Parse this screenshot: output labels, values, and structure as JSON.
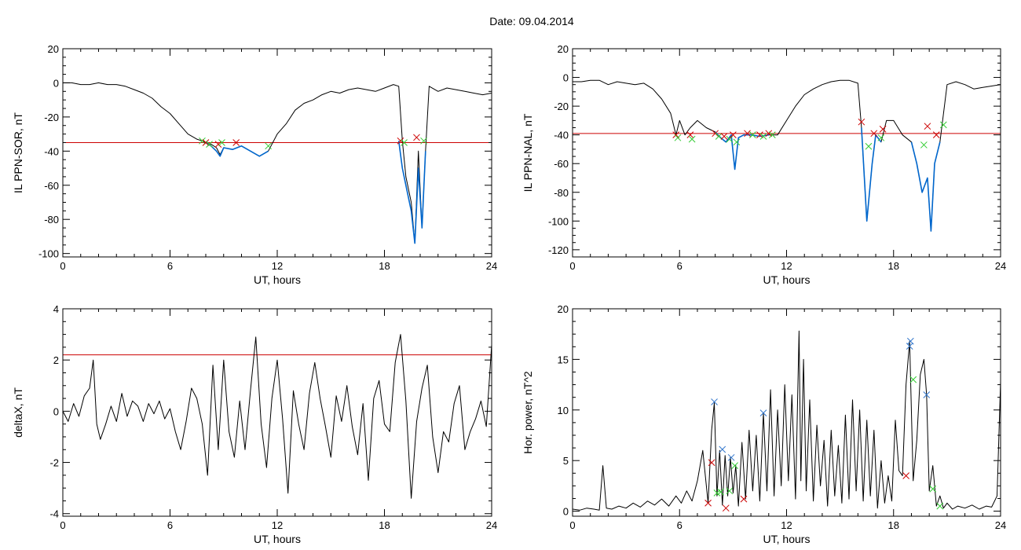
{
  "header": {
    "title": "Date:  09.04.2014"
  },
  "colors": {
    "trace": "#000000",
    "threshold": "#cc0000",
    "segment": "#0066cc",
    "marker_start": "#33cc33",
    "marker_end": "#cc0000",
    "marker_peak": "#3377cc"
  },
  "chart_data": [
    {
      "id": "ppn-sor",
      "type": "line",
      "title": "",
      "xlabel": "UT, hours",
      "ylabel": "IL PPN-SOR, nT",
      "xlim": [
        0,
        24
      ],
      "ylim": [
        -102,
        20
      ],
      "xticks": [
        0,
        6,
        12,
        18,
        24
      ],
      "yticks": [
        20,
        0,
        -20,
        -40,
        -60,
        -80,
        -100
      ],
      "threshold": -35,
      "series": [
        {
          "role": "trace",
          "x": [
            0,
            0.5,
            1,
            1.5,
            2,
            2.5,
            3,
            3.5,
            4,
            4.5,
            5,
            5.5,
            6,
            6.5,
            7,
            7.5,
            7.8,
            8,
            8.3,
            8.6,
            8.8,
            9,
            9.5,
            10,
            10.5,
            11,
            11.5,
            12,
            12.5,
            13,
            13.5,
            14,
            14.5,
            15,
            15.5,
            16,
            16.5,
            17,
            17.5,
            18,
            18.5,
            18.8,
            19,
            19.2,
            19.5,
            19.7,
            19.9,
            20.1,
            20.3,
            20.5,
            21,
            21.5,
            22,
            22.5,
            23,
            23.5,
            24
          ],
          "y": [
            0,
            0,
            -1,
            -1,
            0,
            -1,
            -1,
            -2,
            -4,
            -6,
            -9,
            -14,
            -18,
            -24,
            -30,
            -33,
            -34,
            -35,
            -36,
            -38,
            -42,
            -38,
            -39,
            -37,
            -40,
            -43,
            -40,
            -30,
            -24,
            -16,
            -12,
            -10,
            -7,
            -5,
            -6,
            -4,
            -3,
            -4,
            -5,
            -3,
            -1,
            -2,
            -34,
            -55,
            -70,
            -94,
            -40,
            -85,
            -40,
            -2,
            -5,
            -3,
            -4,
            -5,
            -6,
            -7,
            -6
          ]
        },
        {
          "role": "segment",
          "x": [
            8,
            8.3,
            8.6,
            8.8,
            9,
            9.5,
            10,
            10.5,
            11,
            11.5
          ],
          "y": [
            -35,
            -37,
            -40,
            -43,
            -38,
            -39,
            -37,
            -40,
            -43,
            -40
          ]
        },
        {
          "role": "segment",
          "x": [
            18.8,
            19,
            19.2,
            19.5,
            19.7,
            19.9,
            20.1,
            20.3
          ],
          "y": [
            -34,
            -50,
            -60,
            -75,
            -94,
            -50,
            -85,
            -40
          ]
        }
      ],
      "markers": [
        {
          "x": 7.8,
          "y": -34,
          "kind": "start"
        },
        {
          "x": 8.0,
          "y": -35,
          "kind": "end"
        },
        {
          "x": 8.2,
          "y": -36,
          "kind": "start"
        },
        {
          "x": 8.7,
          "y": -36,
          "kind": "end"
        },
        {
          "x": 8.9,
          "y": -35,
          "kind": "start"
        },
        {
          "x": 9.7,
          "y": -35,
          "kind": "end"
        },
        {
          "x": 11.5,
          "y": -37,
          "kind": "start"
        },
        {
          "x": 18.9,
          "y": -34,
          "kind": "end"
        },
        {
          "x": 19.1,
          "y": -35,
          "kind": "start"
        },
        {
          "x": 19.8,
          "y": -32,
          "kind": "end"
        },
        {
          "x": 20.2,
          "y": -34,
          "kind": "start"
        }
      ]
    },
    {
      "id": "ppn-nal",
      "type": "line",
      "title": "",
      "xlabel": "UT, hours",
      "ylabel": "IL PPN-NAL, nT",
      "xlim": [
        0,
        24
      ],
      "ylim": [
        -125,
        20
      ],
      "xticks": [
        0,
        6,
        12,
        18,
        24
      ],
      "yticks": [
        20,
        0,
        -20,
        -40,
        -60,
        -80,
        -100,
        -120
      ],
      "threshold": -39,
      "series": [
        {
          "role": "trace",
          "x": [
            0,
            0.5,
            1,
            1.5,
            2,
            2.5,
            3,
            3.5,
            4,
            4.5,
            5,
            5.5,
            5.8,
            6,
            6.3,
            6.6,
            7,
            7.5,
            8,
            8.3,
            8.6,
            8.9,
            9.1,
            9.3,
            9.6,
            10,
            10.5,
            11,
            11.5,
            12,
            12.5,
            13,
            13.5,
            14,
            14.5,
            15,
            15.5,
            16,
            16.2,
            16.5,
            16.8,
            17,
            17.3,
            17.6,
            18,
            18.5,
            19,
            19.3,
            19.6,
            19.9,
            20.1,
            20.3,
            20.6,
            21,
            21.5,
            22,
            22.5,
            23,
            23.5,
            24
          ],
          "y": [
            -3,
            -3,
            -2,
            -2,
            -5,
            -3,
            -4,
            -5,
            -4,
            -8,
            -15,
            -25,
            -40,
            -30,
            -40,
            -35,
            -30,
            -35,
            -38,
            -42,
            -45,
            -40,
            -64,
            -42,
            -40,
            -40,
            -41,
            -40,
            -40,
            -30,
            -20,
            -12,
            -8,
            -5,
            -3,
            -2,
            -2,
            -4,
            -35,
            -100,
            -60,
            -40,
            -45,
            -30,
            -30,
            -40,
            -45,
            -60,
            -80,
            -70,
            -107,
            -60,
            -45,
            -5,
            -3,
            -5,
            -8,
            -7,
            -6,
            -5
          ]
        },
        {
          "role": "segment",
          "x": [
            8,
            8.3,
            8.6,
            8.9,
            9.1,
            9.3,
            9.6,
            10,
            10.5,
            11
          ],
          "y": [
            -38,
            -42,
            -45,
            -40,
            -64,
            -42,
            -40,
            -40,
            -41,
            -40
          ]
        },
        {
          "role": "segment",
          "x": [
            16.2,
            16.5,
            16.8,
            17,
            17.3
          ],
          "y": [
            -35,
            -100,
            -60,
            -40,
            -45
          ]
        },
        {
          "role": "segment",
          "x": [
            19,
            19.3,
            19.6,
            19.9,
            20.1,
            20.3,
            20.6
          ],
          "y": [
            -45,
            -60,
            -80,
            -70,
            -107,
            -60,
            -45
          ]
        }
      ],
      "markers": [
        {
          "x": 5.8,
          "y": -40,
          "kind": "end"
        },
        {
          "x": 5.9,
          "y": -42,
          "kind": "start"
        },
        {
          "x": 6.6,
          "y": -40,
          "kind": "end"
        },
        {
          "x": 6.7,
          "y": -43,
          "kind": "start"
        },
        {
          "x": 8.0,
          "y": -39,
          "kind": "end"
        },
        {
          "x": 8.2,
          "y": -41,
          "kind": "start"
        },
        {
          "x": 8.5,
          "y": -41,
          "kind": "end"
        },
        {
          "x": 8.8,
          "y": -43,
          "kind": "start"
        },
        {
          "x": 9.0,
          "y": -40,
          "kind": "end"
        },
        {
          "x": 9.2,
          "y": -45,
          "kind": "start"
        },
        {
          "x": 9.8,
          "y": -39,
          "kind": "end"
        },
        {
          "x": 10.1,
          "y": -40,
          "kind": "start"
        },
        {
          "x": 10.5,
          "y": -40,
          "kind": "end"
        },
        {
          "x": 10.7,
          "y": -41,
          "kind": "start"
        },
        {
          "x": 11.0,
          "y": -39,
          "kind": "end"
        },
        {
          "x": 11.2,
          "y": -40,
          "kind": "start"
        },
        {
          "x": 16.2,
          "y": -31,
          "kind": "end"
        },
        {
          "x": 16.6,
          "y": -48,
          "kind": "start"
        },
        {
          "x": 16.9,
          "y": -39,
          "kind": "end"
        },
        {
          "x": 17.3,
          "y": -42,
          "kind": "start"
        },
        {
          "x": 17.4,
          "y": -36,
          "kind": "end"
        },
        {
          "x": 19.7,
          "y": -47,
          "kind": "start"
        },
        {
          "x": 19.9,
          "y": -34,
          "kind": "end"
        },
        {
          "x": 20.4,
          "y": -40,
          "kind": "end"
        },
        {
          "x": 20.8,
          "y": -33,
          "kind": "start"
        }
      ]
    },
    {
      "id": "deltax",
      "type": "line",
      "title": "",
      "xlabel": "UT, hours",
      "ylabel": "deltaX, nT",
      "xlim": [
        0,
        24
      ],
      "ylim": [
        -4.1,
        4
      ],
      "xticks": [
        0,
        6,
        12,
        18,
        24
      ],
      "yticks": [
        4,
        2,
        0,
        -2,
        -4
      ],
      "threshold": 2.2,
      "series": [
        {
          "role": "trace",
          "x": [
            0,
            0.3,
            0.6,
            0.9,
            1.2,
            1.5,
            1.7,
            1.9,
            2.1,
            2.4,
            2.7,
            3,
            3.3,
            3.6,
            3.9,
            4.2,
            4.5,
            4.8,
            5.1,
            5.4,
            5.7,
            6,
            6.3,
            6.6,
            6.9,
            7.2,
            7.5,
            7.8,
            8.1,
            8.4,
            8.7,
            9,
            9.3,
            9.6,
            9.9,
            10.2,
            10.5,
            10.8,
            11.1,
            11.4,
            11.7,
            12,
            12.3,
            12.6,
            12.9,
            13.2,
            13.5,
            13.8,
            14.1,
            14.4,
            14.7,
            15,
            15.3,
            15.6,
            15.9,
            16.2,
            16.5,
            16.8,
            17.1,
            17.4,
            17.7,
            18,
            18.3,
            18.6,
            18.9,
            19.2,
            19.5,
            19.8,
            20.1,
            20.4,
            20.7,
            21,
            21.3,
            21.6,
            21.9,
            22.2,
            22.5,
            22.8,
            23.1,
            23.4,
            23.7,
            24
          ],
          "y": [
            0,
            -0.4,
            0.3,
            -0.2,
            0.6,
            0.9,
            2.0,
            -0.5,
            -1.1,
            -0.5,
            0.2,
            -0.4,
            0.7,
            -0.2,
            0.4,
            0.2,
            -0.4,
            0.3,
            -0.1,
            0.4,
            -0.3,
            0.1,
            -0.8,
            -1.5,
            -0.4,
            0.9,
            0.5,
            -0.5,
            -2.5,
            1.8,
            -1.5,
            2.0,
            -0.8,
            -1.8,
            0.4,
            -1.5,
            0.8,
            2.9,
            -0.5,
            -2.2,
            0.5,
            2.0,
            -0.3,
            -3.2,
            0.8,
            -0.5,
            -1.5,
            0.7,
            1.9,
            0.5,
            -0.6,
            -1.8,
            0.6,
            -0.4,
            1.0,
            -0.6,
            -1.7,
            0.3,
            -2.7,
            0.5,
            1.2,
            -0.5,
            -0.8,
            1.9,
            3.0,
            0.4,
            -3.4,
            -0.4,
            0.9,
            1.8,
            -1.0,
            -2.4,
            -0.8,
            -1.2,
            0.3,
            1.0,
            -1.5,
            -0.8,
            -0.3,
            0.4,
            -0.6,
            2.6
          ]
        }
      ],
      "markers": []
    },
    {
      "id": "hor-power",
      "type": "line",
      "title": "",
      "xlabel": "UT, hours",
      "ylabel": "Hor. power, nT^2",
      "xlim": [
        0,
        24
      ],
      "ylim": [
        -0.5,
        20
      ],
      "xticks": [
        0,
        6,
        12,
        18,
        24
      ],
      "yticks": [
        20,
        15,
        10,
        5,
        0
      ],
      "series": [
        {
          "role": "trace",
          "x": [
            0,
            0.4,
            0.8,
            1.2,
            1.5,
            1.7,
            1.9,
            2.2,
            2.6,
            3,
            3.4,
            3.8,
            4.2,
            4.6,
            5,
            5.4,
            5.8,
            6.1,
            6.4,
            6.7,
            7,
            7.3,
            7.6,
            7.8,
            7.95,
            8.1,
            8.25,
            8.4,
            8.55,
            8.7,
            8.85,
            9,
            9.15,
            9.3,
            9.5,
            9.7,
            9.9,
            10.1,
            10.3,
            10.5,
            10.7,
            10.9,
            11.1,
            11.3,
            11.5,
            11.7,
            11.9,
            12.1,
            12.3,
            12.5,
            12.7,
            12.8,
            12.95,
            13.1,
            13.3,
            13.5,
            13.7,
            13.9,
            14.1,
            14.3,
            14.5,
            14.7,
            14.9,
            15.1,
            15.3,
            15.5,
            15.7,
            15.9,
            16.1,
            16.3,
            16.5,
            16.7,
            16.9,
            17.1,
            17.3,
            17.5,
            17.7,
            17.9,
            18.1,
            18.3,
            18.5,
            18.7,
            18.9,
            19.1,
            19.3,
            19.5,
            19.7,
            19.85,
            20,
            20.2,
            20.4,
            20.6,
            20.8,
            21,
            21.3,
            21.6,
            22,
            22.4,
            22.8,
            23.2,
            23.5,
            23.8,
            24
          ],
          "y": [
            0.2,
            0.1,
            0.3,
            0.2,
            0.1,
            4.5,
            0.3,
            0.2,
            0.5,
            0.3,
            0.8,
            0.4,
            1.0,
            0.6,
            1.2,
            0.5,
            1.5,
            0.8,
            2.0,
            1.0,
            3.0,
            6.0,
            0.8,
            8.0,
            10.7,
            1.5,
            6.0,
            0.6,
            5.5,
            1.5,
            5.3,
            1.8,
            4.5,
            0.5,
            6.8,
            1.2,
            8.0,
            2.0,
            7.5,
            1.0,
            9.7,
            2.0,
            12.0,
            1.5,
            10.0,
            2.5,
            12.5,
            3.0,
            11.5,
            1.2,
            17.8,
            3.0,
            15.0,
            2.0,
            11.0,
            1.0,
            8.5,
            2.5,
            7.0,
            0.5,
            8.0,
            1.5,
            6.5,
            0.8,
            9.5,
            1.2,
            11.0,
            2.0,
            10.0,
            1.0,
            9.0,
            1.5,
            8.0,
            0.3,
            5.0,
            0.8,
            3.5,
            1.0,
            9.0,
            4.0,
            3.5,
            12.5,
            16.8,
            3.0,
            7.0,
            13.5,
            15.0,
            11.5,
            2.0,
            4.5,
            0.5,
            1.5,
            0.3,
            0.8,
            0.2,
            0.5,
            0.3,
            0.6,
            0.2,
            0.5,
            0.4,
            1.5,
            12.8
          ]
        }
      ],
      "markers": [
        {
          "x": 7.6,
          "y": 0.8,
          "kind": "end"
        },
        {
          "x": 7.8,
          "y": 4.8,
          "kind": "end"
        },
        {
          "x": 7.95,
          "y": 10.8,
          "kind": "peak"
        },
        {
          "x": 8.1,
          "y": 1.8,
          "kind": "start"
        },
        {
          "x": 8.3,
          "y": 1.9,
          "kind": "start"
        },
        {
          "x": 8.4,
          "y": 6.1,
          "kind": "peak"
        },
        {
          "x": 8.6,
          "y": 0.3,
          "kind": "end"
        },
        {
          "x": 8.8,
          "y": 2.0,
          "kind": "start"
        },
        {
          "x": 8.9,
          "y": 5.3,
          "kind": "peak"
        },
        {
          "x": 9.1,
          "y": 4.5,
          "kind": "start"
        },
        {
          "x": 9.6,
          "y": 1.2,
          "kind": "end"
        },
        {
          "x": 10.7,
          "y": 9.7,
          "kind": "peak"
        },
        {
          "x": 18.7,
          "y": 3.5,
          "kind": "end"
        },
        {
          "x": 18.9,
          "y": 16.3,
          "kind": "peak"
        },
        {
          "x": 18.95,
          "y": 16.8,
          "kind": "peak"
        },
        {
          "x": 19.1,
          "y": 13.0,
          "kind": "start"
        },
        {
          "x": 19.85,
          "y": 11.5,
          "kind": "peak"
        },
        {
          "x": 20.2,
          "y": 2.2,
          "kind": "start"
        },
        {
          "x": 20.6,
          "y": 0.5,
          "kind": "start"
        }
      ]
    }
  ]
}
